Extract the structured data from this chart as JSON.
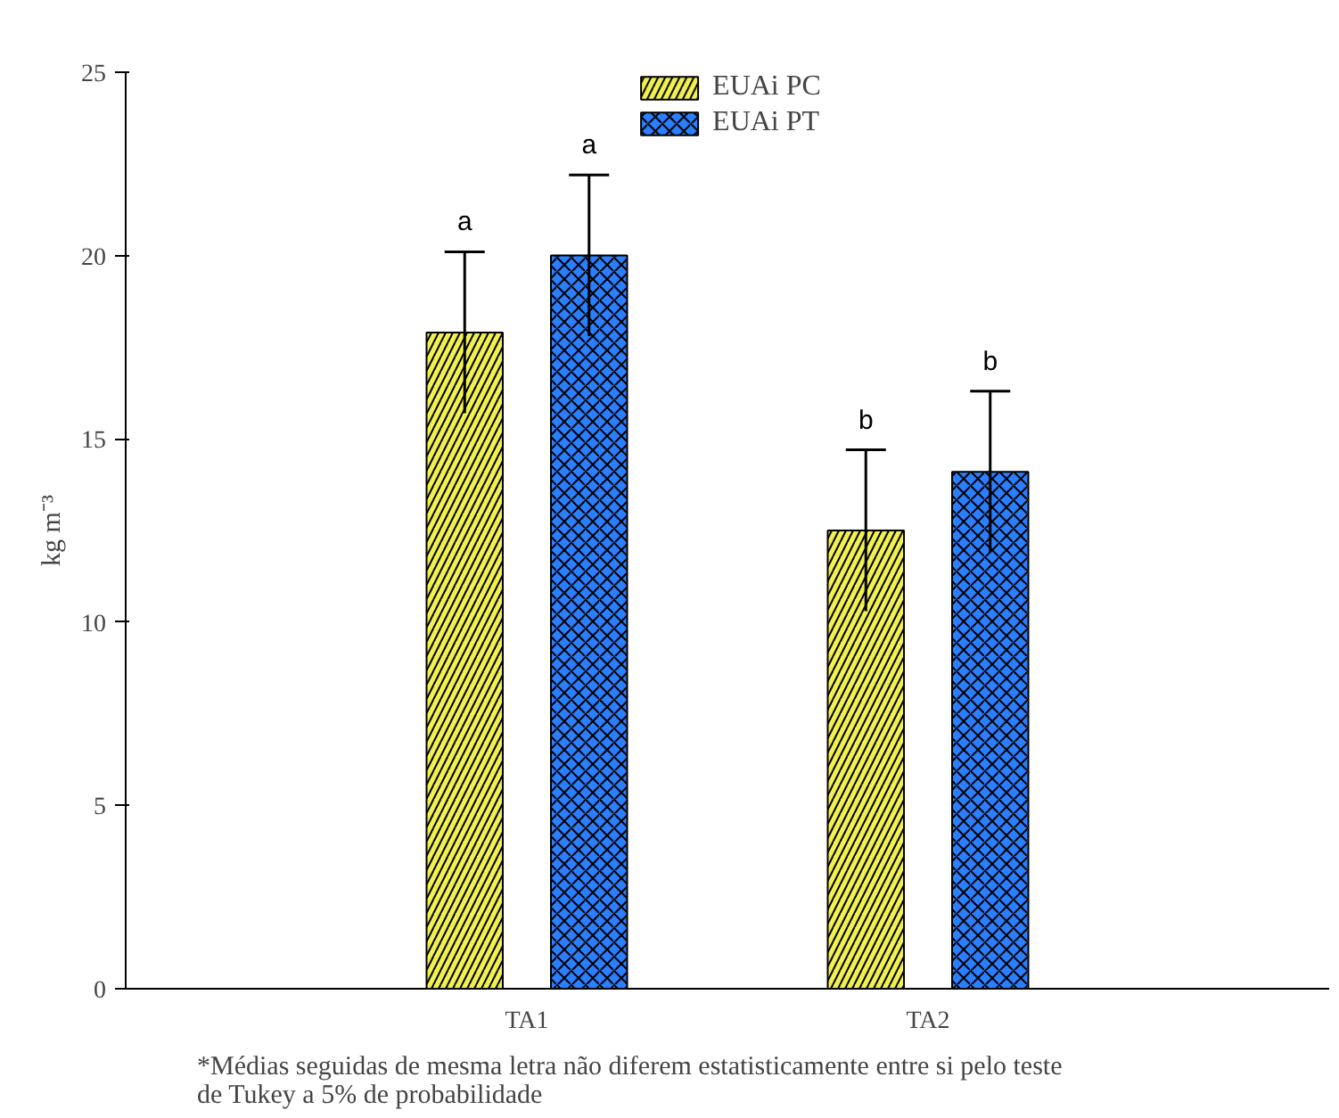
{
  "chart_data": {
    "type": "bar",
    "categories": [
      "TA1",
      "TA2"
    ],
    "ylabel": "kg m⁻³",
    "ylim": [
      0,
      25
    ],
    "yticks": [
      0,
      5,
      10,
      15,
      20,
      25
    ],
    "grid": false,
    "legend": "top",
    "series": [
      {
        "name": "EUAi PC",
        "color": "#f0f050",
        "values": [
          17.9,
          12.5
        ],
        "errors": [
          2.2,
          2.2
        ]
      },
      {
        "name": "EUAi PT",
        "color": "#2a7fff",
        "values": [
          20.0,
          14.1
        ],
        "errors": [
          2.2,
          2.2
        ]
      }
    ],
    "annotations": [
      "a",
      "a",
      "b",
      "b",
      "*Médias seguidas de mesma letra não diferem estatisticamente entre si pelo teste de Tukey a 5% de probabilidade"
    ]
  }
}
